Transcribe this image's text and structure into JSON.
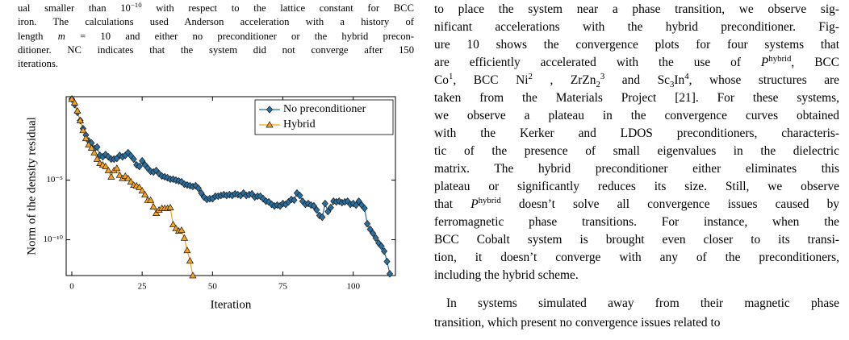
{
  "caption": {
    "lines": [
      [
        "ual smaller than 10",
        {
          "sup": "−10"
        },
        " with respect to the lattice constant for BCC"
      ],
      [
        "iron. The calculations used Anderson acceleration with a history of"
      ],
      [
        "length ",
        {
          "i": "m"
        },
        " = 10 and either no preconditioner or the hybrid precon-"
      ],
      [
        "ditioner.  NC indicates that the system did not converge after 150"
      ],
      [
        "iterations."
      ]
    ]
  },
  "chart_data": {
    "type": "line",
    "yscale": "log",
    "xlabel": "Iteration",
    "ylabel": "Norm of the density residual",
    "xlim": [
      -2,
      115
    ],
    "xticks": [
      0,
      25,
      50,
      75,
      100
    ],
    "ylim": [
      1e-13,
      100
    ],
    "yticks": [
      {
        "value": 1e-05,
        "label": "10⁻⁵"
      },
      {
        "value": 1e-10,
        "label": "10⁻¹⁰"
      }
    ],
    "grid": false,
    "legend": "upper right",
    "series": [
      {
        "name": "No preconditioner",
        "color": "#2b6f9e",
        "marker": "diamond",
        "x": [
          0,
          1,
          2,
          3,
          4,
          5,
          6,
          7,
          8,
          9,
          10,
          11,
          12,
          13,
          14,
          15,
          16,
          17,
          18,
          19,
          20,
          21,
          22,
          23,
          24,
          25,
          26,
          27,
          28,
          29,
          30,
          31,
          32,
          33,
          34,
          35,
          36,
          37,
          38,
          39,
          40,
          41,
          42,
          43,
          44,
          45,
          46,
          47,
          48,
          49,
          50,
          51,
          52,
          53,
          54,
          55,
          56,
          57,
          58,
          59,
          60,
          61,
          62,
          63,
          64,
          65,
          66,
          67,
          68,
          69,
          70,
          71,
          72,
          73,
          74,
          75,
          76,
          77,
          78,
          79,
          80,
          81,
          82,
          83,
          84,
          85,
          86,
          87,
          88,
          89,
          90,
          91,
          92,
          93,
          94,
          95,
          96,
          97,
          98,
          99,
          100,
          101,
          102,
          103,
          104,
          105,
          106,
          107,
          108,
          109,
          110,
          111,
          112,
          113
        ],
        "values": [
          63,
          22,
          4.8,
          1,
          0.21,
          0.06,
          0.02,
          0.013,
          0.0044,
          0.006,
          0.0012,
          0.0009,
          0.0014,
          0.0009,
          0.00058,
          0.00058,
          0.00066,
          0.0012,
          0.0009,
          0.0012,
          0.002,
          0.0011,
          0.00058,
          0.00019,
          0.00014,
          0.00042,
          0.00019,
          0.0001,
          5.5e-05,
          4.8e-05,
          6.5e-05,
          3.5e-05,
          2.2e-05,
          1.9e-05,
          1.6e-05,
          1.2e-05,
          1.2e-05,
          1e-05,
          8.5e-06,
          7.3e-06,
          4.6e-06,
          3.9e-06,
          3.4e-06,
          2.9e-06,
          3.4e-06,
          2.1e-06,
          8.3e-07,
          3.8e-07,
          2.4e-07,
          2.8e-07,
          2.8e-07,
          4.5e-07,
          4.5e-07,
          5.2e-07,
          6.1e-07,
          5.2e-07,
          6.1e-07,
          5.2e-07,
          7.1e-07,
          6.1e-07,
          5.2e-07,
          8.3e-07,
          5.2e-07,
          6.1e-07,
          7.1e-07,
          3.8e-07,
          4.5e-07,
          4.5e-07,
          2.8e-07,
          1.7e-07,
          1.5e-07,
          9.4e-08,
          6.9e-08,
          8.1e-08,
          6.9e-08,
          1.1e-07,
          9.4e-08,
          1.5e-07,
          2.4e-07,
          2.1e-07,
          8.3e-07,
          5.2e-07,
          1.7e-07,
          9.4e-08,
          1.1e-07,
          8.1e-08,
          6.9e-08,
          3.2e-08,
          1.1e-08,
          7.8e-09,
          1.1e-07,
          2.3e-08,
          5e-08,
          1.7e-07,
          1.5e-07,
          1.7e-07,
          1.3e-07,
          1.5e-07,
          1.7e-07,
          9.4e-08,
          1.1e-07,
          8.1e-08,
          1.7e-07,
          8.1e-08,
          4.4e-08,
          2.2e-09,
          7.6e-10,
          3.5e-10,
          1.4e-10,
          5.4e-11,
          2.9e-11,
          1.1e-11,
          1.5e-12,
          1.4e-13
        ]
      },
      {
        "name": "Hybrid",
        "color": "#f4a11e",
        "marker": "triangle",
        "x": [
          0,
          1,
          2,
          3,
          4,
          5,
          6,
          7,
          8,
          9,
          10,
          11,
          12,
          13,
          14,
          15,
          16,
          17,
          18,
          19,
          20,
          21,
          22,
          23,
          24,
          25,
          26,
          27,
          28,
          29,
          30,
          31,
          32,
          33,
          34,
          35,
          36,
          37,
          38,
          39,
          40,
          41,
          42,
          43
        ],
        "values": [
          63,
          31,
          6.5,
          1,
          0.15,
          0.032,
          0.0093,
          0.005,
          0.002,
          0.00058,
          0.00026,
          0.00019,
          0.00014,
          6.5e-05,
          1.9e-05,
          6.5e-05,
          0.0001,
          2.6e-05,
          1.4e-05,
          2.2e-05,
          1.4e-05,
          7.3e-06,
          3.9e-06,
          3.4e-06,
          2.5e-06,
          1.3e-06,
          6.1e-07,
          2.1e-07,
          2.1e-07,
          5.9e-08,
          1.7e-08,
          3.2e-08,
          4.4e-08,
          4.4e-08,
          4.4e-08,
          5e-08,
          1.9e-09,
          8.9e-10,
          5.5e-10,
          6.4e-10,
          1.4e-10,
          1.3e-11,
          1.7e-12,
          1e-13
        ]
      }
    ]
  },
  "body": {
    "lines": [
      [
        "to place the system near a phase transition, we observe sig-"
      ],
      [
        "nificant accelerations with the hybrid preconditioner. Fig-"
      ],
      [
        "ure 10 shows the convergence plots for four systems that"
      ],
      [
        "are efficiently accelerated with the use of ",
        {
          "i": "P"
        },
        {
          "sup": "hybrid"
        },
        ", BCC"
      ],
      [
        "Co",
        {
          "sup": "1"
        },
        ", BCC Ni",
        {
          "sup": "2"
        },
        " , ZrZn",
        {
          "sub": "2"
        },
        {
          "sup": "3"
        },
        " and Sc",
        {
          "sub": "3"
        },
        "In",
        {
          "sup": "4"
        },
        ", whose structures are"
      ],
      [
        "taken from the Materials Project [21]. For these systems,"
      ],
      [
        "we observe a plateau in the convergence curves obtained"
      ],
      [
        "with the Kerker and LDOS preconditioners, characteris-"
      ],
      [
        "tic of the presence of small eigenvalues in the dielectric"
      ],
      [
        "matrix. The hybrid preconditioner either eliminates this"
      ],
      [
        "plateau or significantly reduces its size. Still, we observe"
      ],
      [
        "that ",
        {
          "i": "P"
        },
        {
          "sup": "hybrid"
        },
        " doesn’t solve all convergence issues caused by"
      ],
      [
        "ferromagnetic phase transitions. For instance, when the"
      ],
      [
        "BCC Cobalt system is brought even closer to its transi-"
      ],
      [
        "tion, it doesn’t converge with any of the preconditioners,"
      ],
      [
        "including the hybrid scheme."
      ],
      [
        "In systems simulated away from their magnetic phase"
      ],
      [
        "transition, which present no convergence issues related to"
      ]
    ]
  }
}
